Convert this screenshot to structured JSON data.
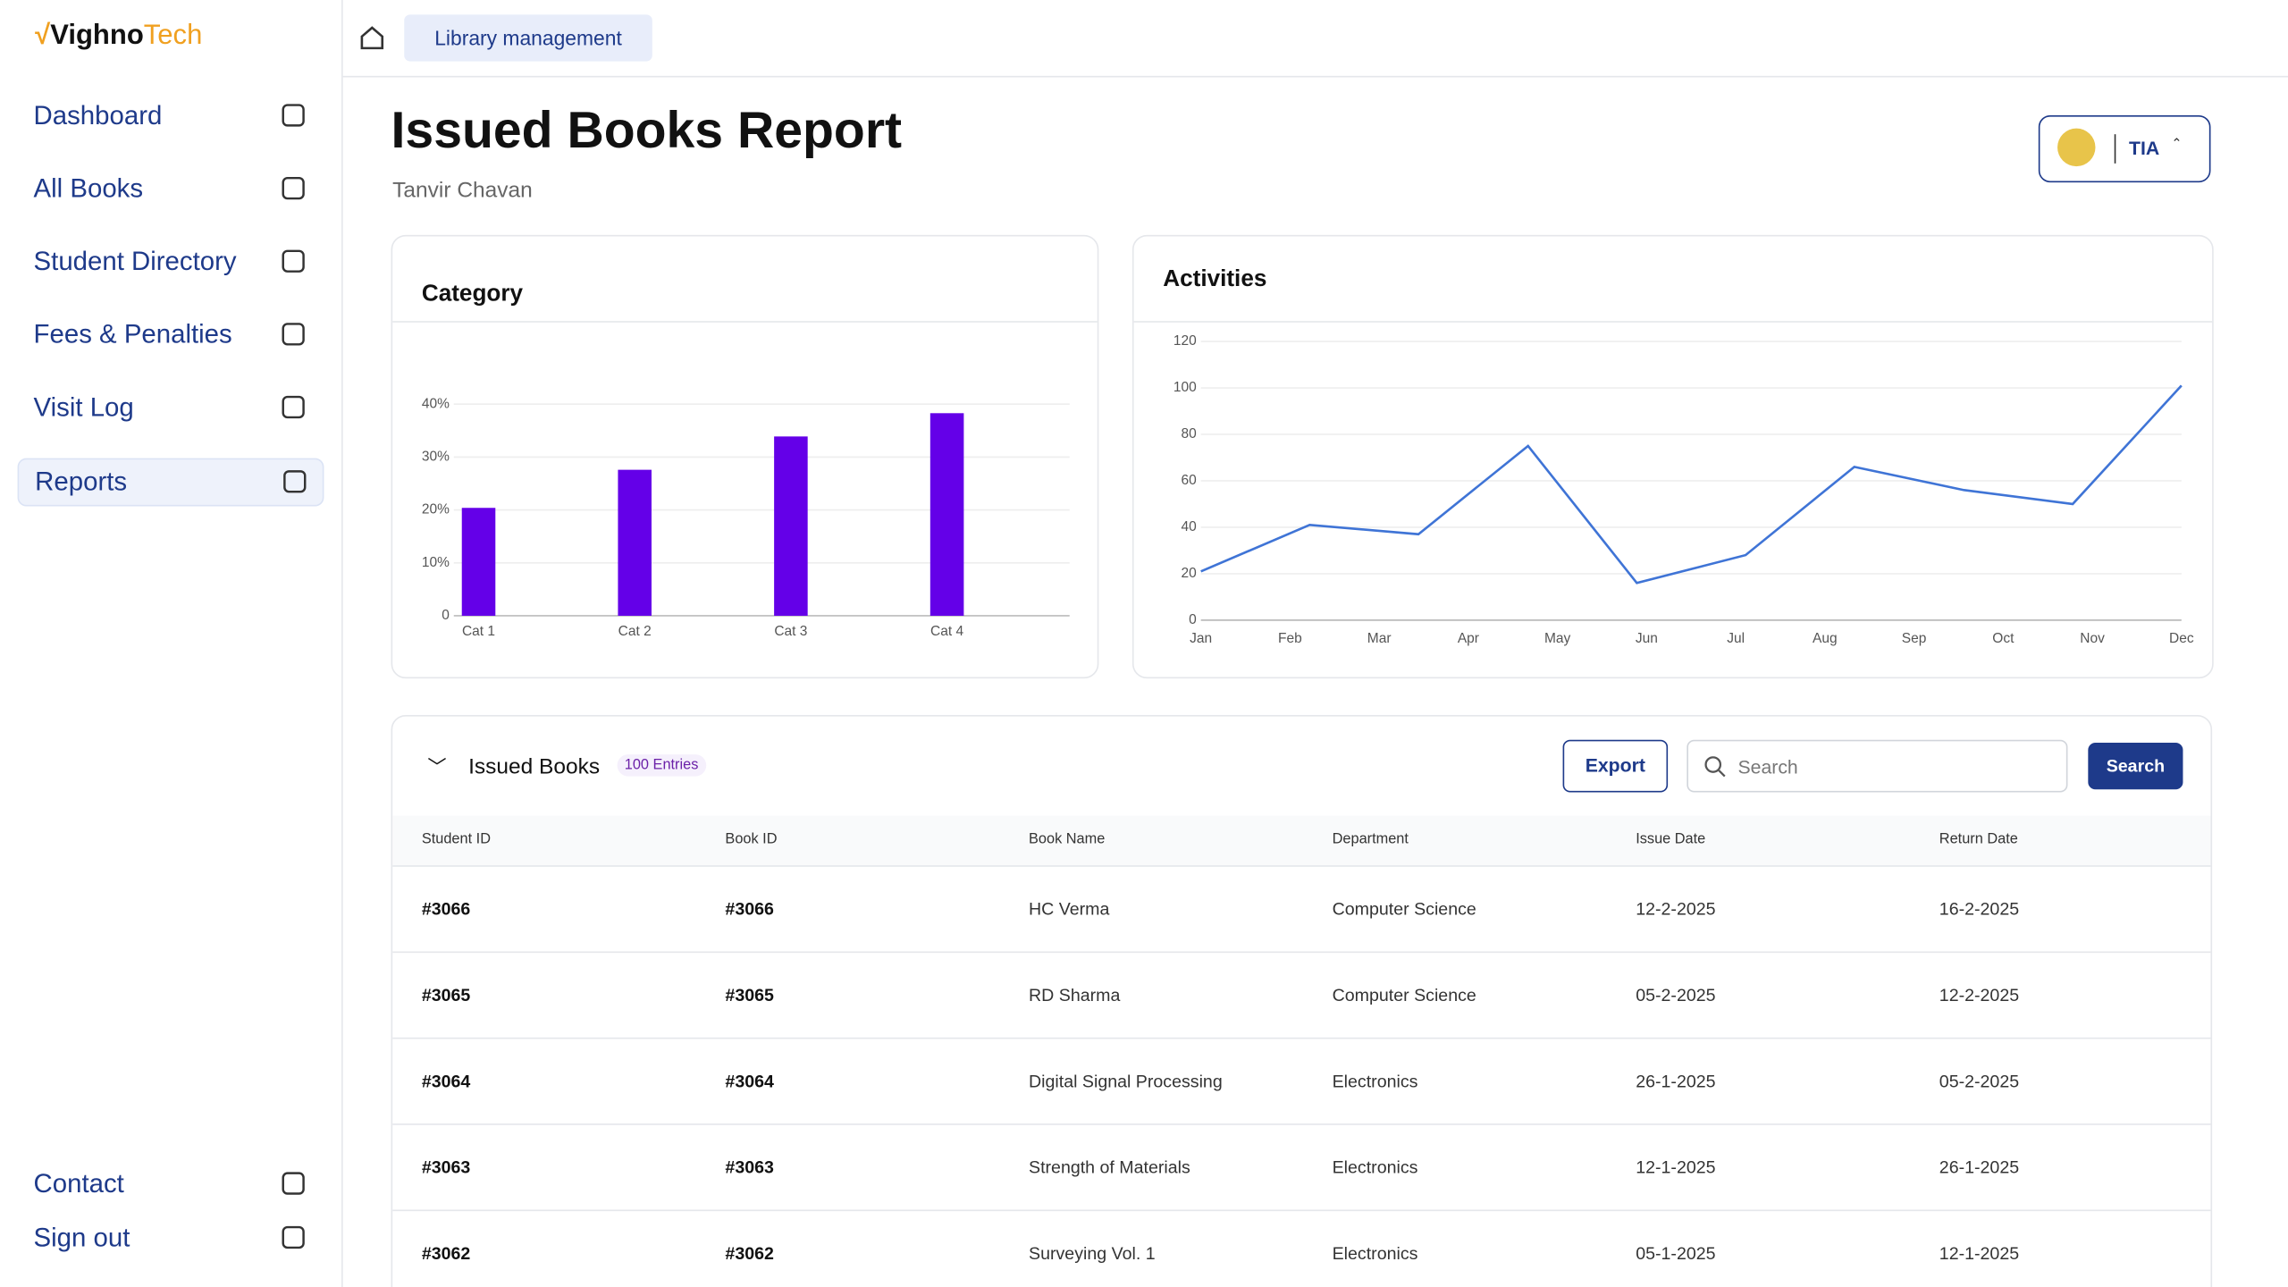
{
  "brand": {
    "name": "Vighno",
    "suffix": "Tech"
  },
  "sidebar": {
    "nav": [
      "Dashboard",
      "All Books",
      "Student Directory",
      "Fees & Penalties",
      "Visit Log",
      "Reports"
    ],
    "active": 5,
    "footer": [
      "Contact",
      "Sign out"
    ]
  },
  "breadcrumb": "Library management",
  "header": {
    "title": "Issued Books Report",
    "subtitle": "Tanvir Chavan",
    "org": "TIA"
  },
  "chart_data": [
    {
      "type": "bar",
      "title": "Category",
      "categories": [
        "Cat 1",
        "Cat 2",
        "Cat 3",
        "Cat 4"
      ],
      "values": [
        20.4,
        27.6,
        33.9,
        38.3
      ],
      "color": "#6400e8",
      "ylim": [
        0,
        40
      ],
      "yticks": [
        0,
        {
          "value": 10,
          "label": "10%"
        },
        {
          "value": 20,
          "label": "20%"
        },
        {
          "value": 30,
          "label": "30%"
        },
        {
          "value": 40,
          "label": "40%"
        }
      ],
      "grid": true
    },
    {
      "type": "line",
      "title": "Activities",
      "x": [
        1,
        2.22,
        3.44,
        4.67,
        5.89,
        7.11,
        8.33,
        9.56,
        10.78,
        12
      ],
      "values": [
        21,
        41,
        37,
        75,
        16,
        28,
        66,
        56,
        50,
        101
      ],
      "color": "#3f74d6",
      "xlim": [
        1,
        12
      ],
      "xticks": [
        {
          "value": 1,
          "label": "Jan"
        },
        {
          "value": 2,
          "label": "Feb"
        },
        {
          "value": 3,
          "label": "Mar"
        },
        {
          "value": 4,
          "label": "Apr"
        },
        {
          "value": 5,
          "label": "May"
        },
        {
          "value": 6,
          "label": "Jun"
        },
        {
          "value": 7,
          "label": "Jul"
        },
        {
          "value": 8,
          "label": "Aug"
        },
        {
          "value": 9,
          "label": "Sep"
        },
        {
          "value": 10,
          "label": "Oct"
        },
        {
          "value": 11,
          "label": "Nov"
        },
        {
          "value": 12,
          "label": "Dec"
        }
      ],
      "ylim": [
        0,
        120
      ],
      "yticks": [
        0,
        20,
        40,
        60,
        80,
        100,
        120
      ],
      "grid": true
    }
  ],
  "table": {
    "title": "Issued Books",
    "entries": "100 Entries",
    "export": "Export",
    "search_placeholder": "Search",
    "search_button": "Search",
    "columns": [
      "Student ID",
      "Book ID",
      "Book Name",
      "Department",
      "Issue Date",
      "Return Date"
    ],
    "rows": [
      [
        "#3066",
        "#3066",
        "HC Verma",
        "Computer Science",
        "12-2-2025",
        "16-2-2025"
      ],
      [
        "#3065",
        "#3065",
        "RD Sharma",
        "Computer Science",
        "05-2-2025",
        "12-2-2025"
      ],
      [
        "#3064",
        "#3064",
        "Digital Signal Processing",
        "Electronics",
        "26-1-2025",
        "05-2-2025"
      ],
      [
        "#3063",
        "#3063",
        "Strength of Materials",
        "Electronics",
        "12-1-2025",
        "26-1-2025"
      ],
      [
        "#3062",
        "#3062",
        "Surveying Vol. 1",
        "Electronics",
        "05-1-2025",
        "12-1-2025"
      ]
    ]
  }
}
